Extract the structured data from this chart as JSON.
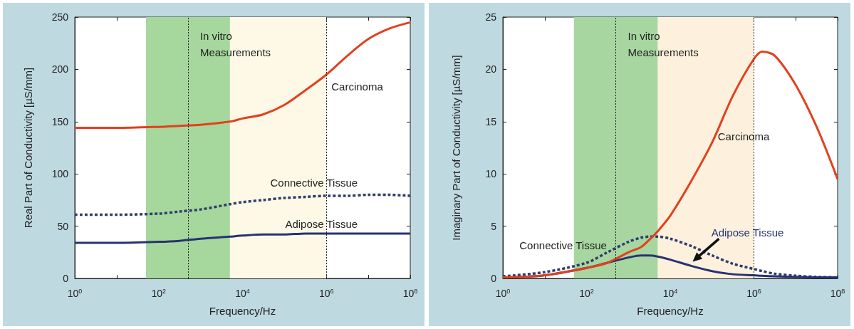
{
  "chart_data": [
    {
      "type": "line",
      "xlabel": "Frequency/Hz",
      "ylabel": "Real Part of Conductivity [µS/mm]",
      "log": "x",
      "x": [
        1,
        10,
        100,
        316,
        1000,
        5000,
        10000,
        31600,
        100000,
        316000,
        1000000,
        3160000,
        10000000,
        31600000,
        100000000
      ],
      "series": [
        {
          "name": "Connective Tissue",
          "color": "#2f3d6e",
          "line_style": "dotted",
          "values": [
            61,
            61,
            62,
            64,
            66,
            71,
            73,
            75,
            77,
            78,
            79,
            79,
            80,
            80,
            79
          ]
        },
        {
          "name": "Adipose Tissue",
          "color": "#283272",
          "values": [
            34,
            34,
            35,
            36,
            38,
            40,
            41,
            42,
            42,
            43,
            43,
            43,
            43,
            43,
            43
          ]
        },
        {
          "name": "Carcinoma",
          "color": "#e2401f",
          "values": [
            144,
            144,
            145,
            146,
            147,
            150,
            153,
            157,
            166,
            180,
            195,
            213,
            229,
            239,
            245
          ]
        }
      ],
      "xlim": [
        1,
        100000000
      ],
      "xticks": [
        {
          "value": 1,
          "label": "10$^{0}$"
        },
        {
          "value": 10,
          "label": null
        },
        {
          "value": 100,
          "label": "10$^{2}$"
        },
        {
          "value": 1000,
          "label": null
        },
        {
          "value": 10000,
          "label": "10$^{4}$"
        },
        {
          "value": 100000,
          "label": null
        },
        {
          "value": 1000000,
          "label": "10$^{6}$"
        },
        {
          "value": 10000000,
          "label": null
        },
        {
          "value": 100000000,
          "label": "10$^{8}$"
        }
      ],
      "ylim": [
        0,
        250
      ],
      "yticks": [
        0,
        50,
        100,
        150,
        200,
        250
      ],
      "bands": [
        {
          "axis": "x",
          "from": 500,
          "to": 1000000,
          "label": "In vitro\nMeasurements",
          "color": "#fdf9e6"
        },
        {
          "axis": "x",
          "from": 50,
          "to": 5000,
          "color": "#a6d79c"
        }
      ],
      "ref_lines": [
        {
          "axis": "x",
          "value": 500,
          "line_style": "dotted",
          "color": "#222222"
        },
        {
          "axis": "x",
          "value": 1000000,
          "line_style": "dotted",
          "color": "#222222"
        }
      ]
    },
    {
      "type": "line",
      "xlabel": "Frequency/Hz",
      "ylabel": "Imaginary Part of Conductivity [µS/mm]",
      "log": "x",
      "x": [
        1,
        10,
        100,
        316,
        1000,
        2000,
        3160,
        5000,
        10000,
        31600,
        100000,
        316000,
        1000000,
        1580000,
        3160000,
        10000000,
        31600000,
        100000000
      ],
      "series": [
        {
          "name": "Connective Tissue",
          "color": "#2f3d6e",
          "line_style": "dotted",
          "values": [
            0.2,
            0.6,
            1.5,
            2.5,
            3.5,
            3.9,
            4.0,
            4.0,
            3.8,
            3.1,
            2.2,
            1.4,
            0.9,
            0.7,
            0.45,
            0.25,
            0.15,
            0.1
          ]
        },
        {
          "name": "Adipose Tissue",
          "color": "#283272",
          "values": [
            0.1,
            0.3,
            1.0,
            1.5,
            2.0,
            2.2,
            2.2,
            2.1,
            1.8,
            1.2,
            0.7,
            0.4,
            0.3,
            0.25,
            0.2,
            0.15,
            0.1,
            0.1
          ]
        },
        {
          "name": "Carcinoma",
          "color": "#e2401f",
          "values": [
            0.1,
            0.3,
            1.0,
            1.5,
            2.5,
            3.0,
            3.7,
            4.5,
            6.0,
            9.3,
            13.0,
            17.5,
            21.0,
            21.7,
            21.3,
            18.5,
            14.5,
            9.5
          ]
        }
      ],
      "xlim": [
        1,
        100000000
      ],
      "xticks": [
        {
          "value": 1,
          "label": "10$^{0}$"
        },
        {
          "value": 10,
          "label": null
        },
        {
          "value": 100,
          "label": "10$^{2}$"
        },
        {
          "value": 1000,
          "label": null
        },
        {
          "value": 10000,
          "label": "10$^{4}$"
        },
        {
          "value": 100000,
          "label": null
        },
        {
          "value": 1000000,
          "label": "10$^{6}$"
        },
        {
          "value": 10000000,
          "label": null
        },
        {
          "value": 100000000,
          "label": "10$^{8}$"
        }
      ],
      "ylim": [
        0,
        25
      ],
      "yticks": [
        0,
        5,
        10,
        15,
        20,
        25
      ],
      "bands": [
        {
          "axis": "x",
          "from": 500,
          "to": 1000000,
          "label": "In vitro\nMeasurements",
          "color": "#fdf1dd"
        },
        {
          "axis": "x",
          "from": 50,
          "to": 5000,
          "color": "#a7d6a0"
        }
      ],
      "ref_lines": [
        {
          "axis": "x",
          "value": 500,
          "line_style": "dotted",
          "color": "#222222"
        },
        {
          "axis": "x",
          "value": 1000000,
          "line_style": "dotted",
          "color": "#222222"
        }
      ]
    }
  ]
}
